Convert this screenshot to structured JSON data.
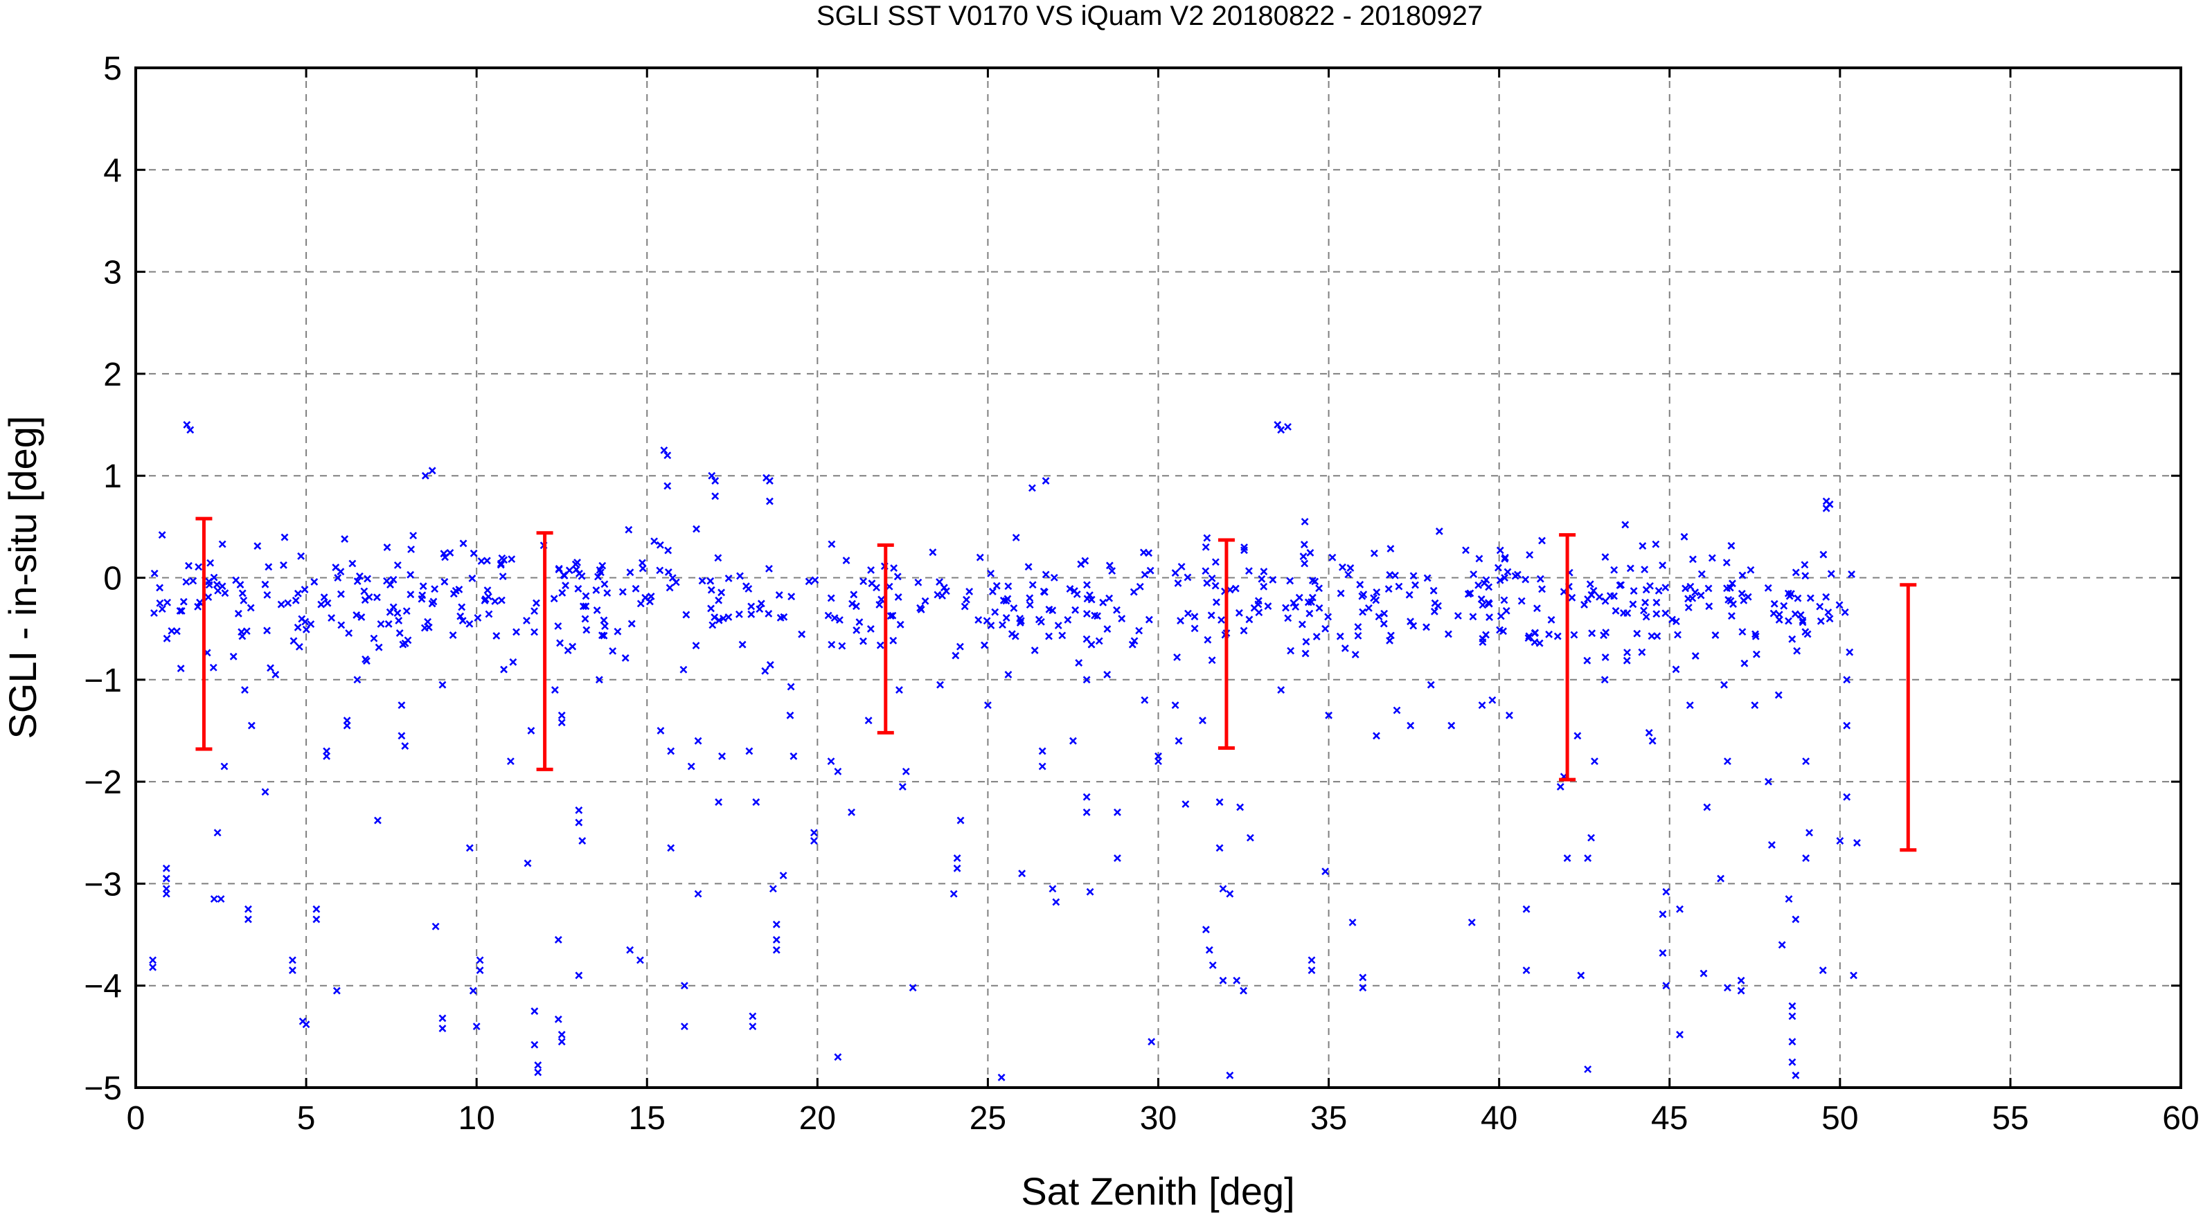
{
  "chart_data": {
    "type": "scatter",
    "title": "SGLI SST V0170 VS iQuam V2 20180822 - 20180927",
    "xlabel": "Sat Zenith [deg]",
    "ylabel": "SGLI - in-situ [deg]",
    "xlim": [
      0,
      60
    ],
    "ylim": [
      -5,
      5
    ],
    "xticks": [
      0,
      5,
      10,
      15,
      20,
      25,
      30,
      35,
      40,
      45,
      50,
      55,
      60
    ],
    "yticks": [
      -5,
      -4,
      -3,
      -2,
      -1,
      0,
      1,
      2,
      3,
      4,
      5
    ],
    "grid": true,
    "legend": "none",
    "colors": {
      "points": "#0000ff",
      "error_bars": "#ff0000",
      "grid": "#7f7f7f"
    },
    "series": [
      {
        "kind": "points",
        "marker": "x",
        "points": [
          [
            0.5,
            -3.75
          ],
          [
            0.5,
            -3.82
          ],
          [
            0.9,
            -2.85
          ],
          [
            0.9,
            -2.95
          ],
          [
            0.9,
            -3.05
          ],
          [
            0.9,
            -3.1
          ],
          [
            1.5,
            1.5
          ],
          [
            1.6,
            1.45
          ],
          [
            2.4,
            -2.5
          ],
          [
            2.3,
            -3.15
          ],
          [
            2.5,
            -3.15
          ],
          [
            2.6,
            -1.85
          ],
          [
            3.3,
            -3.25
          ],
          [
            3.3,
            -3.35
          ],
          [
            3.8,
            -2.1
          ],
          [
            4.6,
            -3.75
          ],
          [
            4.6,
            -3.85
          ],
          [
            4.9,
            -4.35
          ],
          [
            5.0,
            -4.38
          ],
          [
            5.3,
            -3.25
          ],
          [
            5.3,
            -3.35
          ],
          [
            5.6,
            -1.7
          ],
          [
            5.6,
            -1.75
          ],
          [
            5.9,
            -4.05
          ],
          [
            6.2,
            -1.4
          ],
          [
            6.2,
            -1.45
          ],
          [
            7.1,
            -2.38
          ],
          [
            7.8,
            -1.55
          ],
          [
            7.9,
            -1.65
          ],
          [
            8.5,
            1.0
          ],
          [
            8.7,
            1.05
          ],
          [
            8.8,
            -3.42
          ],
          [
            9.0,
            -4.32
          ],
          [
            9.0,
            -4.42
          ],
          [
            9.8,
            -2.65
          ],
          [
            9.9,
            -4.05
          ],
          [
            10.1,
            -3.75
          ],
          [
            10.1,
            -3.85
          ],
          [
            10.0,
            -4.4
          ],
          [
            11.0,
            -1.8
          ],
          [
            11.5,
            -2.8
          ],
          [
            11.7,
            -4.25
          ],
          [
            11.7,
            -4.58
          ],
          [
            11.8,
            -4.78
          ],
          [
            11.8,
            -4.85
          ],
          [
            12.5,
            -1.35
          ],
          [
            12.5,
            -1.42
          ],
          [
            12.4,
            -4.33
          ],
          [
            12.5,
            -4.48
          ],
          [
            12.5,
            -4.55
          ],
          [
            12.4,
            -3.55
          ],
          [
            13.0,
            -2.28
          ],
          [
            13.0,
            -2.4
          ],
          [
            13.1,
            -2.58
          ],
          [
            13.0,
            -3.9
          ],
          [
            14.5,
            -3.65
          ],
          [
            14.8,
            -3.75
          ],
          [
            15.5,
            1.25
          ],
          [
            15.6,
            1.2
          ],
          [
            15.6,
            0.9
          ],
          [
            15.7,
            -2.65
          ],
          [
            16.1,
            -4.0
          ],
          [
            16.1,
            -4.4
          ],
          [
            16.5,
            -3.1
          ],
          [
            16.9,
            1.0
          ],
          [
            17.0,
            0.95
          ],
          [
            17.0,
            0.8
          ],
          [
            17.1,
            -2.2
          ],
          [
            17.2,
            -1.75
          ],
          [
            18.0,
            -1.7
          ],
          [
            18.2,
            -2.2
          ],
          [
            18.1,
            -4.3
          ],
          [
            18.1,
            -4.4
          ],
          [
            18.5,
            0.98
          ],
          [
            18.6,
            0.95
          ],
          [
            18.6,
            0.75
          ],
          [
            18.7,
            -3.05
          ],
          [
            18.8,
            -3.4
          ],
          [
            18.8,
            -3.55
          ],
          [
            18.8,
            -3.65
          ],
          [
            19.0,
            -2.92
          ],
          [
            19.3,
            -1.75
          ],
          [
            19.9,
            -2.5
          ],
          [
            19.9,
            -2.58
          ],
          [
            20.6,
            -4.7
          ],
          [
            21.0,
            -2.3
          ],
          [
            22.5,
            -2.05
          ],
          [
            22.6,
            -1.9
          ],
          [
            22.8,
            -4.02
          ],
          [
            24.1,
            -2.75
          ],
          [
            24.1,
            -2.85
          ],
          [
            24.2,
            -2.38
          ],
          [
            24.0,
            -3.1
          ],
          [
            25.4,
            -4.9
          ],
          [
            26.0,
            -2.9
          ],
          [
            26.3,
            0.88
          ],
          [
            26.7,
            0.95
          ],
          [
            26.6,
            -1.7
          ],
          [
            26.6,
            -1.85
          ],
          [
            26.9,
            -3.05
          ],
          [
            27.0,
            -3.18
          ],
          [
            27.5,
            -1.6
          ],
          [
            27.9,
            -2.15
          ],
          [
            27.9,
            -2.3
          ],
          [
            28.0,
            -3.08
          ],
          [
            28.8,
            -2.3
          ],
          [
            28.8,
            -2.75
          ],
          [
            29.8,
            -4.55
          ],
          [
            30.0,
            -1.75
          ],
          [
            30.0,
            -1.8
          ],
          [
            30.6,
            -1.6
          ],
          [
            30.8,
            -2.22
          ],
          [
            31.4,
            -3.45
          ],
          [
            31.5,
            -3.65
          ],
          [
            31.6,
            -3.8
          ],
          [
            31.8,
            -2.2
          ],
          [
            31.8,
            -2.65
          ],
          [
            31.9,
            -3.05
          ],
          [
            31.9,
            -3.95
          ],
          [
            32.1,
            -3.1
          ],
          [
            32.1,
            -4.88
          ],
          [
            32.4,
            -2.25
          ],
          [
            32.3,
            -3.95
          ],
          [
            32.5,
            -4.05
          ],
          [
            32.7,
            -2.55
          ],
          [
            33.5,
            1.5
          ],
          [
            33.6,
            1.45
          ],
          [
            33.8,
            1.48
          ],
          [
            34.3,
            0.55
          ],
          [
            34.5,
            -3.75
          ],
          [
            34.5,
            -3.85
          ],
          [
            34.9,
            -2.88
          ],
          [
            35.7,
            -3.38
          ],
          [
            36.0,
            -3.92
          ],
          [
            36.0,
            -4.02
          ],
          [
            37.4,
            -1.45
          ],
          [
            38.6,
            -1.45
          ],
          [
            39.2,
            -3.38
          ],
          [
            39.5,
            -1.25
          ],
          [
            39.8,
            -1.2
          ],
          [
            40.8,
            -3.25
          ],
          [
            40.8,
            -3.85
          ],
          [
            41.8,
            -2.05
          ],
          [
            41.9,
            -1.95
          ],
          [
            42.0,
            -2.75
          ],
          [
            42.3,
            -1.55
          ],
          [
            42.4,
            -3.9
          ],
          [
            42.6,
            -4.82
          ],
          [
            42.7,
            -2.55
          ],
          [
            42.6,
            -2.75
          ],
          [
            42.8,
            -1.8
          ],
          [
            43.7,
            0.52
          ],
          [
            44.4,
            -1.52
          ],
          [
            44.5,
            -1.6
          ],
          [
            44.9,
            -3.08
          ],
          [
            44.8,
            -3.3
          ],
          [
            44.8,
            -3.68
          ],
          [
            44.9,
            -4.0
          ],
          [
            45.3,
            -3.25
          ],
          [
            45.3,
            -4.48
          ],
          [
            46.0,
            -3.88
          ],
          [
            46.1,
            -2.25
          ],
          [
            46.5,
            -2.95
          ],
          [
            46.7,
            -1.8
          ],
          [
            46.7,
            -4.02
          ],
          [
            47.1,
            -3.95
          ],
          [
            47.1,
            -4.05
          ],
          [
            47.5,
            -1.25
          ],
          [
            47.9,
            -2.0
          ],
          [
            48.0,
            -2.62
          ],
          [
            48.5,
            -3.15
          ],
          [
            48.7,
            -3.35
          ],
          [
            48.6,
            -4.2
          ],
          [
            48.6,
            -4.3
          ],
          [
            48.6,
            -4.55
          ],
          [
            48.6,
            -4.75
          ],
          [
            48.7,
            -4.88
          ],
          [
            48.3,
            -3.6
          ],
          [
            49.0,
            -1.8
          ],
          [
            49.0,
            -2.75
          ],
          [
            49.1,
            -2.5
          ],
          [
            49.5,
            -3.85
          ],
          [
            49.7,
            0.72
          ],
          [
            49.6,
            0.68
          ],
          [
            49.6,
            0.75
          ],
          [
            50.0,
            -2.58
          ],
          [
            50.2,
            -2.15
          ],
          [
            50.2,
            -1.45
          ],
          [
            50.5,
            -2.6
          ],
          [
            50.4,
            -3.9
          ],
          [
            15.4,
            -1.5
          ],
          [
            15.7,
            -1.7
          ],
          [
            16.3,
            -1.85
          ],
          [
            16.5,
            -1.6
          ],
          [
            19.2,
            -1.35
          ],
          [
            20.4,
            -1.8
          ],
          [
            20.6,
            -1.9
          ],
          [
            21.5,
            -1.4
          ],
          [
            22.4,
            -1.1
          ],
          [
            23.6,
            -1.05
          ],
          [
            25.0,
            -1.25
          ],
          [
            25.6,
            -0.95
          ],
          [
            27.9,
            -1.0
          ],
          [
            28.5,
            -0.95
          ],
          [
            29.6,
            -1.2
          ],
          [
            30.5,
            -1.25
          ],
          [
            31.3,
            -1.4
          ],
          [
            33.6,
            -1.1
          ],
          [
            35.0,
            -1.35
          ],
          [
            36.4,
            -1.55
          ],
          [
            37.0,
            -1.3
          ],
          [
            38.0,
            -1.05
          ],
          [
            40.3,
            -1.35
          ],
          [
            43.1,
            -1.0
          ],
          [
            45.6,
            -1.25
          ],
          [
            46.6,
            -1.05
          ],
          [
            48.2,
            -1.15
          ],
          [
            50.2,
            -1.0
          ],
          [
            3.2,
            -1.1
          ],
          [
            3.4,
            -1.45
          ],
          [
            4.1,
            -0.95
          ],
          [
            6.5,
            -1.0
          ],
          [
            7.8,
            -1.25
          ],
          [
            9.0,
            -1.05
          ],
          [
            10.8,
            -0.9
          ],
          [
            11.6,
            -1.5
          ],
          [
            12.3,
            -1.1
          ],
          [
            13.6,
            -1.0
          ]
        ],
        "band": {
          "x_start": 0.5,
          "x_end": 50.4,
          "points_per_unit": 13,
          "center": -0.22,
          "spread": 0.45,
          "seed": 17
        }
      },
      {
        "kind": "error_bars",
        "x": [
          2,
          12,
          22,
          32,
          42,
          52
        ],
        "y": [
          -0.55,
          -0.72,
          -0.6,
          -0.65,
          -0.78,
          -1.37
        ],
        "yerr": [
          1.13,
          1.16,
          0.92,
          1.02,
          1.2,
          1.3
        ]
      }
    ]
  }
}
